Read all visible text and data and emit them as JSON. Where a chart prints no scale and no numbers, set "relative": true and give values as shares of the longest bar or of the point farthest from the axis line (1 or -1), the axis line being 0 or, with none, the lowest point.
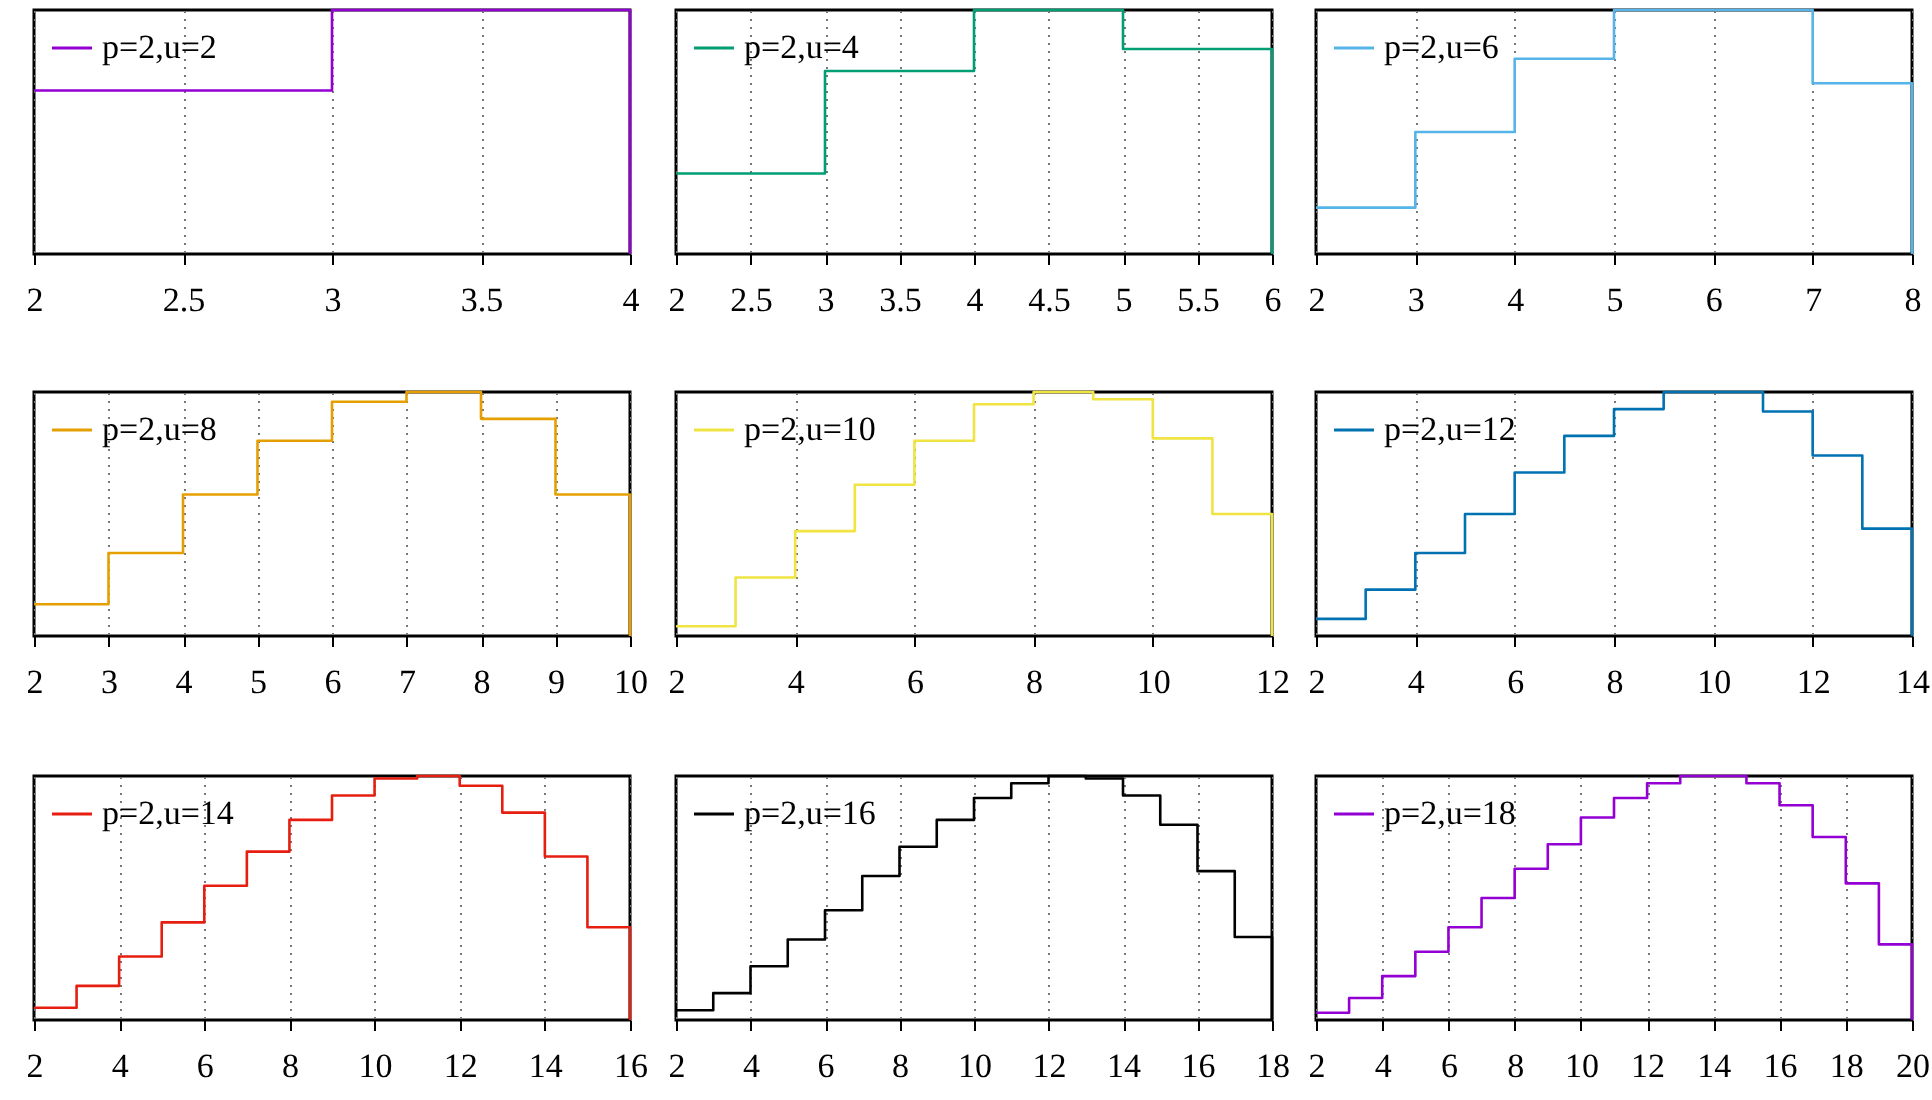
{
  "chart_data": [
    {
      "type": "step",
      "relative": true,
      "grid": "x",
      "legend": "top left",
      "xlim": [
        2,
        4
      ],
      "xticks": [
        2,
        2.5,
        3,
        3.5,
        4
      ],
      "series": [
        {
          "name": "p=2,u=2",
          "color": "#9400d3",
          "x": [
            2,
            3,
            4
          ],
          "values": [
            0.67,
            1,
            0
          ]
        }
      ]
    },
    {
      "type": "step",
      "relative": true,
      "grid": "x",
      "legend": "top left",
      "xlim": [
        2,
        6
      ],
      "xticks": [
        2,
        2.5,
        3,
        3.5,
        4,
        4.5,
        5,
        5.5,
        6
      ],
      "series": [
        {
          "name": "p=2,u=4",
          "color": "#009e73",
          "x": [
            2,
            3,
            4,
            5,
            6
          ],
          "values": [
            0.33,
            0.75,
            1,
            0.84,
            0
          ]
        }
      ]
    },
    {
      "type": "step",
      "relative": true,
      "grid": "x",
      "legend": "top left",
      "xlim": [
        2,
        8
      ],
      "xticks": [
        2,
        3,
        4,
        5,
        6,
        7,
        8
      ],
      "series": [
        {
          "name": "p=2,u=6",
          "color": "#56b4e9",
          "x": [
            2,
            3,
            4,
            5,
            6,
            7,
            8
          ],
          "values": [
            0.19,
            0.5,
            0.8,
            1,
            1,
            0.7,
            0
          ]
        }
      ]
    },
    {
      "type": "step",
      "relative": true,
      "grid": "x",
      "legend": "top left",
      "xlim": [
        2,
        10
      ],
      "xticks": [
        2,
        3,
        4,
        5,
        6,
        7,
        8,
        9,
        10
      ],
      "series": [
        {
          "name": "p=2,u=8",
          "color": "#e69f00",
          "x": [
            2,
            3,
            4,
            5,
            6,
            7,
            8,
            9,
            10
          ],
          "values": [
            0.13,
            0.34,
            0.58,
            0.8,
            0.96,
            1,
            0.89,
            0.58,
            0
          ]
        }
      ]
    },
    {
      "type": "step",
      "relative": true,
      "grid": "x",
      "legend": "top left",
      "xlim": [
        2,
        12
      ],
      "xticks": [
        2,
        4,
        6,
        8,
        10,
        12
      ],
      "series": [
        {
          "name": "p=2,u=10",
          "color": "#f0e442",
          "x": [
            2,
            3,
            4,
            5,
            6,
            7,
            8,
            9,
            10,
            11,
            12
          ],
          "values": [
            0.04,
            0.24,
            0.43,
            0.62,
            0.8,
            0.95,
            1,
            0.97,
            0.81,
            0.5,
            0
          ]
        }
      ]
    },
    {
      "type": "step",
      "relative": true,
      "grid": "x",
      "legend": "top left",
      "xlim": [
        2,
        14
      ],
      "xticks": [
        2,
        4,
        6,
        8,
        10,
        12,
        14
      ],
      "series": [
        {
          "name": "p=2,u=12",
          "color": "#0072b2",
          "x": [
            2,
            3,
            4,
            5,
            6,
            7,
            8,
            9,
            10,
            11,
            12,
            13,
            14
          ],
          "values": [
            0.07,
            0.19,
            0.34,
            0.5,
            0.67,
            0.82,
            0.93,
            1,
            1,
            0.92,
            0.74,
            0.44,
            0
          ]
        }
      ]
    },
    {
      "type": "step",
      "relative": true,
      "grid": "x",
      "legend": "top left",
      "xlim": [
        2,
        16
      ],
      "xticks": [
        2,
        4,
        6,
        8,
        10,
        12,
        14,
        16
      ],
      "series": [
        {
          "name": "p=2,u=14",
          "color": "#e51e10",
          "x": [
            2,
            3,
            4,
            5,
            6,
            7,
            8,
            9,
            10,
            11,
            12,
            13,
            14,
            15,
            16
          ],
          "values": [
            0.05,
            0.14,
            0.26,
            0.4,
            0.55,
            0.69,
            0.82,
            0.92,
            0.99,
            1,
            0.96,
            0.85,
            0.67,
            0.38,
            0
          ]
        }
      ]
    },
    {
      "type": "step",
      "relative": true,
      "grid": "x",
      "legend": "top left",
      "xlim": [
        2,
        18
      ],
      "xticks": [
        2,
        4,
        6,
        8,
        10,
        12,
        14,
        16,
        18
      ],
      "series": [
        {
          "name": "p=2,u=16",
          "color": "#000000",
          "x": [
            2,
            3,
            4,
            5,
            6,
            7,
            8,
            9,
            10,
            11,
            12,
            13,
            14,
            15,
            16,
            17,
            18
          ],
          "values": [
            0.04,
            0.11,
            0.22,
            0.33,
            0.45,
            0.59,
            0.71,
            0.82,
            0.91,
            0.97,
            1,
            0.99,
            0.92,
            0.8,
            0.61,
            0.34,
            0
          ]
        }
      ]
    },
    {
      "type": "step",
      "relative": true,
      "grid": "x",
      "legend": "top left",
      "xlim": [
        2,
        20
      ],
      "xticks": [
        2,
        4,
        6,
        8,
        10,
        12,
        14,
        16,
        18,
        20
      ],
      "series": [
        {
          "name": "p=2,u=18",
          "color": "#9400d3",
          "x": [
            2,
            3,
            4,
            5,
            6,
            7,
            8,
            9,
            10,
            11,
            12,
            13,
            14,
            15,
            16,
            17,
            18,
            19,
            20
          ],
          "values": [
            0.03,
            0.09,
            0.18,
            0.28,
            0.38,
            0.5,
            0.62,
            0.72,
            0.83,
            0.91,
            0.97,
            1,
            1,
            0.97,
            0.88,
            0.75,
            0.56,
            0.31,
            0
          ]
        }
      ]
    }
  ]
}
